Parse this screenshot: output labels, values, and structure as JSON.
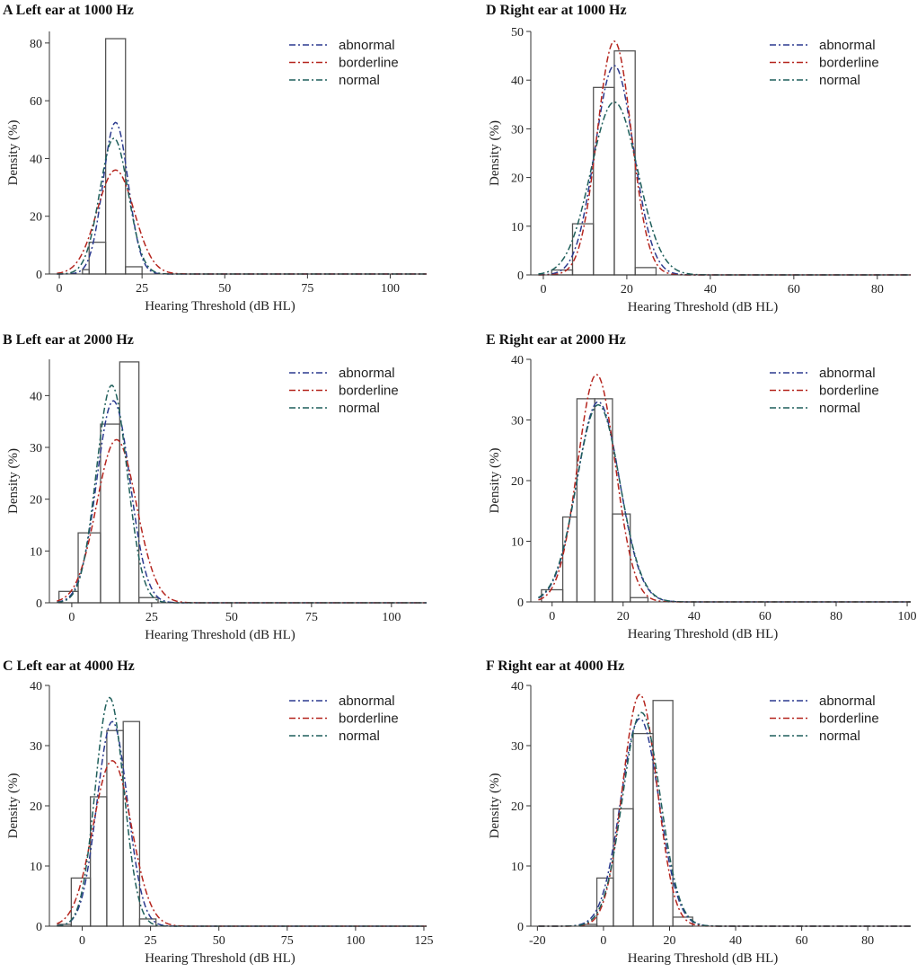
{
  "chart_data": [
    {
      "type": "histogram",
      "panel_letter": "A",
      "title": "Left ear at 1000 Hz",
      "xlabel": "Hearing Threshold (dB HL)",
      "ylabel": "Density (%)",
      "xlim": [
        -3,
        111
      ],
      "ylim": [
        0,
        84
      ],
      "xticks": [
        0,
        25,
        50,
        75,
        100
      ],
      "yticks": [
        0,
        20,
        40,
        60,
        80
      ],
      "bins": [
        {
          "x0": 7,
          "x1": 9,
          "value": 1.5
        },
        {
          "x0": 9,
          "x1": 14,
          "value": 11
        },
        {
          "x0": 14,
          "x1": 20,
          "value": 81.5
        },
        {
          "x0": 20,
          "x1": 25,
          "value": 2.5
        }
      ],
      "series": [
        {
          "name": "abnormal",
          "type": "normal-curve",
          "mean": 17,
          "peak": 52.5,
          "sd": 3.8
        },
        {
          "name": "borderline",
          "type": "normal-curve",
          "mean": 17,
          "peak": 36,
          "sd": 5.6
        },
        {
          "name": "normal",
          "type": "normal-curve",
          "mean": 16.5,
          "peak": 47,
          "sd": 4.3
        }
      ],
      "legend": [
        "abnormal",
        "borderline",
        "normal"
      ]
    },
    {
      "type": "histogram",
      "panel_letter": "B",
      "title": "Left ear at 2000 Hz",
      "xlabel": "Hearing Threshold (dB HL)",
      "ylabel": "Density (%)",
      "xlim": [
        -7,
        111
      ],
      "ylim": [
        0,
        47
      ],
      "xticks": [
        0,
        25,
        50,
        75,
        100
      ],
      "yticks": [
        0,
        10,
        20,
        30,
        40
      ],
      "bins": [
        {
          "x0": -4,
          "x1": 2,
          "value": 2.2
        },
        {
          "x0": 2,
          "x1": 9,
          "value": 13.5
        },
        {
          "x0": 9,
          "x1": 15,
          "value": 34.5
        },
        {
          "x0": 15,
          "x1": 21,
          "value": 46.5
        },
        {
          "x0": 21,
          "x1": 27,
          "value": 1
        }
      ],
      "series": [
        {
          "name": "abnormal",
          "type": "normal-curve",
          "mean": 13,
          "peak": 39,
          "sd": 5.2
        },
        {
          "name": "borderline",
          "type": "normal-curve",
          "mean": 14,
          "peak": 31.5,
          "sd": 6.2
        },
        {
          "name": "normal",
          "type": "normal-curve",
          "mean": 12.5,
          "peak": 42,
          "sd": 4.8
        }
      ],
      "legend": [
        "abnormal",
        "borderline",
        "normal"
      ]
    },
    {
      "type": "histogram",
      "panel_letter": "C",
      "title": "Left ear at 4000 Hz",
      "xlabel": "Hearing Threshold (dB HL)",
      "ylabel": "Density (%)",
      "xlim": [
        -12,
        126
      ],
      "ylim": [
        0,
        40
      ],
      "xticks": [
        0,
        25,
        50,
        75,
        100,
        125
      ],
      "yticks": [
        0,
        10,
        20,
        30,
        40
      ],
      "bins": [
        {
          "x0": -9,
          "x1": -4,
          "value": 0.3
        },
        {
          "x0": -4,
          "x1": 3,
          "value": 8
        },
        {
          "x0": 3,
          "x1": 9,
          "value": 21.5
        },
        {
          "x0": 9,
          "x1": 15,
          "value": 32.5
        },
        {
          "x0": 15,
          "x1": 21,
          "value": 34
        },
        {
          "x0": 21,
          "x1": 27,
          "value": 1.2
        }
      ],
      "series": [
        {
          "name": "abnormal",
          "type": "normal-curve",
          "mean": 11,
          "peak": 34,
          "sd": 5.6
        },
        {
          "name": "borderline",
          "type": "normal-curve",
          "mean": 11,
          "peak": 27.5,
          "sd": 7
        },
        {
          "name": "normal",
          "type": "normal-curve",
          "mean": 10,
          "peak": 38,
          "sd": 5.2
        }
      ],
      "legend": [
        "abnormal",
        "borderline",
        "normal"
      ]
    },
    {
      "type": "histogram",
      "panel_letter": "D",
      "title": "Right ear at 1000 Hz",
      "xlabel": "Hearing Threshold (dB HL)",
      "ylabel": "Density (%)",
      "xlim": [
        -3,
        88
      ],
      "ylim": [
        0,
        50
      ],
      "xticks": [
        0,
        20,
        40,
        60,
        80
      ],
      "yticks": [
        0,
        10,
        20,
        30,
        40,
        50
      ],
      "bins": [
        {
          "x0": 2,
          "x1": 7,
          "value": 1
        },
        {
          "x0": 7,
          "x1": 12,
          "value": 10.5
        },
        {
          "x0": 12,
          "x1": 17,
          "value": 38.5
        },
        {
          "x0": 17,
          "x1": 22,
          "value": 46
        },
        {
          "x0": 22,
          "x1": 27,
          "value": 1.5
        }
      ],
      "series": [
        {
          "name": "abnormal",
          "type": "normal-curve",
          "mean": 17,
          "peak": 43,
          "sd": 4.6
        },
        {
          "name": "borderline",
          "type": "normal-curve",
          "mean": 17,
          "peak": 48,
          "sd": 4.1
        },
        {
          "name": "normal",
          "type": "normal-curve",
          "mean": 17,
          "peak": 35.5,
          "sd": 5.6
        }
      ],
      "legend": [
        "abnormal",
        "borderline",
        "normal"
      ]
    },
    {
      "type": "histogram",
      "panel_letter": "E",
      "title": "Right ear at 2000 Hz",
      "xlabel": "Hearing Threshold (dB HL)",
      "ylabel": "Density (%)",
      "xlim": [
        -6,
        101
      ],
      "ylim": [
        0,
        40
      ],
      "xticks": [
        0,
        20,
        40,
        60,
        80,
        100
      ],
      "yticks": [
        0,
        10,
        20,
        30,
        40
      ],
      "bins": [
        {
          "x0": -3,
          "x1": 3,
          "value": 2
        },
        {
          "x0": 3,
          "x1": 7,
          "value": 14
        },
        {
          "x0": 7,
          "x1": 12,
          "value": 33.5
        },
        {
          "x0": 12,
          "x1": 17,
          "value": 33.5
        },
        {
          "x0": 17,
          "x1": 22,
          "value": 14.5
        },
        {
          "x0": 22,
          "x1": 27,
          "value": 0.7
        }
      ],
      "series": [
        {
          "name": "abnormal",
          "type": "normal-curve",
          "mean": 13,
          "peak": 33,
          "sd": 6
        },
        {
          "name": "borderline",
          "type": "normal-curve",
          "mean": 12.5,
          "peak": 37.5,
          "sd": 5.3
        },
        {
          "name": "normal",
          "type": "normal-curve",
          "mean": 13,
          "peak": 32.5,
          "sd": 6.1
        }
      ],
      "legend": [
        "abnormal",
        "borderline",
        "normal"
      ]
    },
    {
      "type": "histogram",
      "panel_letter": "F",
      "title": "Right ear at 4000 Hz",
      "xlabel": "Hearing Threshold (dB HL)",
      "ylabel": "Density (%)",
      "xlim": [
        -22,
        93
      ],
      "ylim": [
        0,
        40
      ],
      "xticks": [
        -20,
        0,
        20,
        40,
        60,
        80
      ],
      "yticks": [
        0,
        10,
        20,
        30,
        40
      ],
      "bins": [
        {
          "x0": -7,
          "x1": -2,
          "value": 0.3
        },
        {
          "x0": -2,
          "x1": 3,
          "value": 8
        },
        {
          "x0": 3,
          "x1": 9,
          "value": 19.5
        },
        {
          "x0": 9,
          "x1": 15,
          "value": 32
        },
        {
          "x0": 15,
          "x1": 21,
          "value": 37.5
        },
        {
          "x0": 21,
          "x1": 27,
          "value": 1.5
        }
      ],
      "series": [
        {
          "name": "abnormal",
          "type": "normal-curve",
          "mean": 11,
          "peak": 34.5,
          "sd": 5.8
        },
        {
          "name": "borderline",
          "type": "normal-curve",
          "mean": 11,
          "peak": 38.5,
          "sd": 5.2
        },
        {
          "name": "normal",
          "type": "normal-curve",
          "mean": 11.5,
          "peak": 35.5,
          "sd": 5.7
        }
      ],
      "legend": [
        "abnormal",
        "borderline",
        "normal"
      ]
    }
  ],
  "colors": {
    "abnormal": "#2b3a8f",
    "borderline": "#b5251e",
    "normal": "#1f5f5b",
    "bar_stroke": "#555555",
    "axis": "#333333"
  }
}
